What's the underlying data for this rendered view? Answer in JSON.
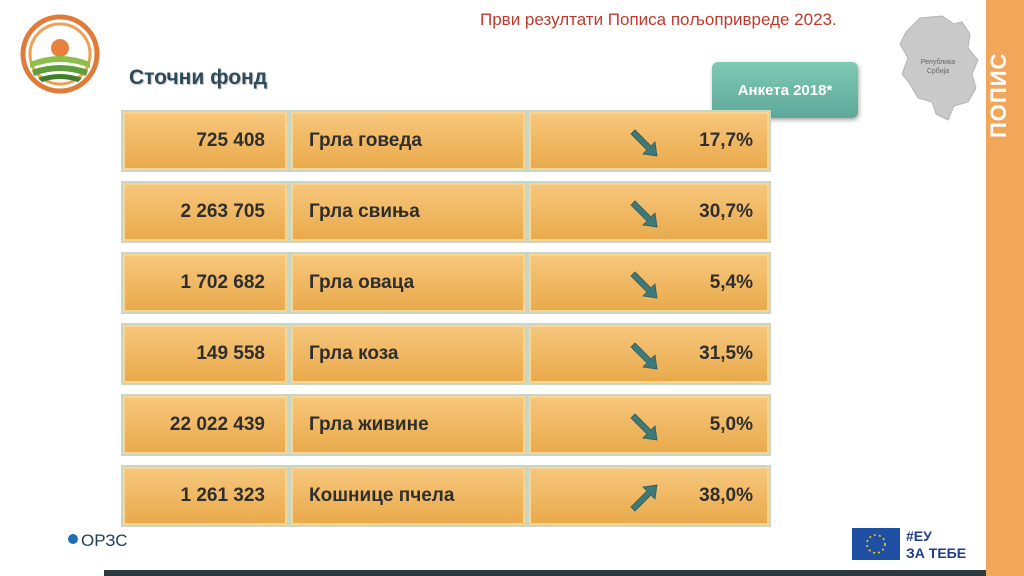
{
  "header": {
    "title": "Први резултати  Пописа пољопривреде 2023."
  },
  "page": {
    "title": "Сточни фонд"
  },
  "survey_button": {
    "label": "Анкета 2018*"
  },
  "side_band": {
    "label": "ПОПИС"
  },
  "map": {
    "label_line1": "Република",
    "label_line2": "Србија"
  },
  "rows": [
    {
      "value": "725 408",
      "label": "Грла говеда",
      "pct": "17,7%",
      "trend": "down"
    },
    {
      "value": "2 263 705",
      "label": "Грла свиња",
      "pct": "30,7%",
      "trend": "down"
    },
    {
      "value": "1 702 682",
      "label": "Грла оваца",
      "pct": "5,4%",
      "trend": "down"
    },
    {
      "value": "149 558",
      "label": "Грла коза",
      "pct": "31,5%",
      "trend": "down"
    },
    {
      "value": "22 022 439",
      "label": "Грла живине",
      "pct": "5,0%",
      "trend": "down"
    },
    {
      "value": "1 261 323",
      "label": "Кошнице пчела",
      "pct": "38,0%",
      "trend": "up"
    }
  ],
  "footer": {
    "org_logo": "ОРЗС",
    "eu_tag_line1": "#ЕУ",
    "eu_tag_line2": "ЗА ТЕБЕ"
  },
  "colors": {
    "cell": "#e9a94a",
    "arrow": "#3f7a78",
    "header": "#c0392b",
    "band": "#f2a65a"
  }
}
